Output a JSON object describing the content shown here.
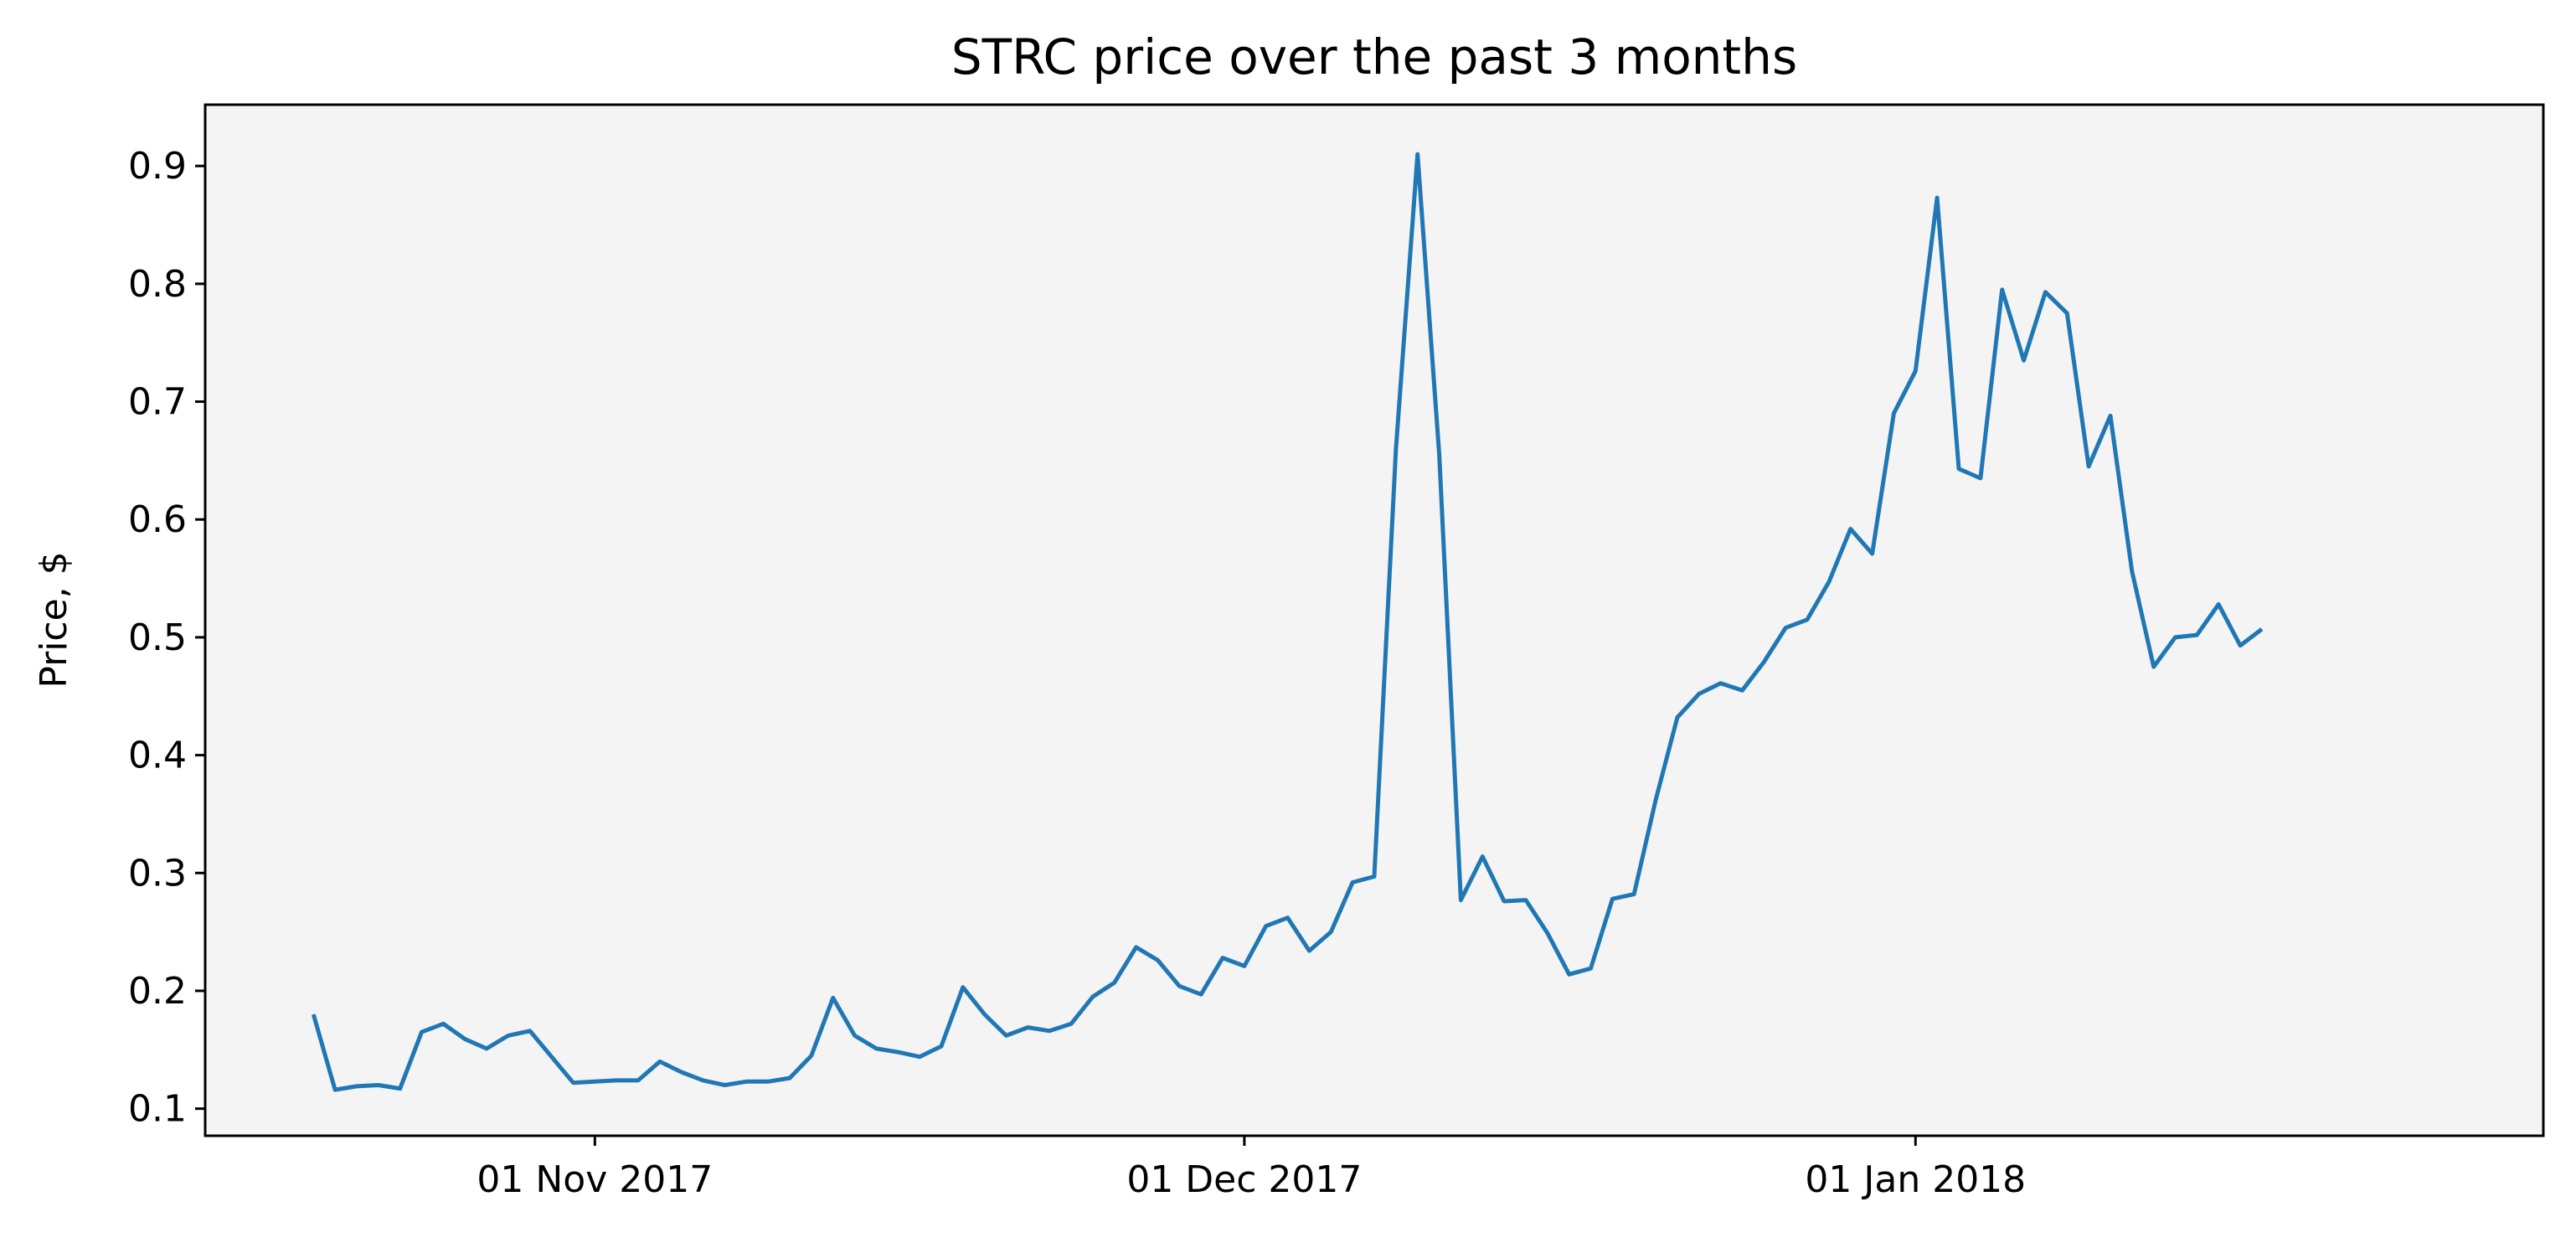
{
  "chart_data": {
    "type": "line",
    "title": "STRC price over the past 3 months",
    "xlabel": "",
    "ylabel": "Price, $",
    "x_start": "2017-10-19",
    "x_step_days": 1,
    "x_ticks": [
      {
        "date": "2017-11-01",
        "label": "01 Nov 2017"
      },
      {
        "date": "2017-12-01",
        "label": "01 Dec 2017"
      },
      {
        "date": "2018-01-01",
        "label": "01 Jan 2018"
      }
    ],
    "xlim": [
      "2017-10-14",
      "2018-01-30"
    ],
    "ylim": [
      0.077,
      0.952
    ],
    "y_ticks": [
      0.1,
      0.2,
      0.3,
      0.4,
      0.5,
      0.6,
      0.7,
      0.8,
      0.9
    ],
    "y_tick_labels": [
      "0.1",
      "0.2",
      "0.3",
      "0.4",
      "0.5",
      "0.6",
      "0.7",
      "0.8",
      "0.9"
    ],
    "grid": false,
    "background": "#f4f4f4",
    "line_color": "#1f77b4",
    "series": [
      {
        "values": [
          0.18,
          0.116,
          0.119,
          0.12,
          0.117,
          0.165,
          0.172,
          0.159,
          0.151,
          0.162,
          0.166,
          0.144,
          0.122,
          0.123,
          0.124,
          0.124,
          0.14,
          0.131,
          0.124,
          0.12,
          0.123,
          0.123,
          0.126,
          0.145,
          0.194,
          0.162,
          0.151,
          0.148,
          0.144,
          0.153,
          0.203,
          0.18,
          0.162,
          0.169,
          0.166,
          0.172,
          0.195,
          0.207,
          0.237,
          0.226,
          0.204,
          0.197,
          0.228,
          0.221,
          0.255,
          0.262,
          0.234,
          0.25,
          0.292,
          0.297,
          0.66,
          0.91,
          0.655,
          0.277,
          0.314,
          0.276,
          0.277,
          0.249,
          0.214,
          0.219,
          0.278,
          0.282,
          0.362,
          0.432,
          0.452,
          0.461,
          0.455,
          0.479,
          0.508,
          0.515,
          0.547,
          0.592,
          0.571,
          0.69,
          0.726,
          0.873,
          0.643,
          0.635,
          0.795,
          0.735,
          0.793,
          0.775,
          0.645,
          0.688,
          0.556,
          0.475,
          0.5,
          0.502,
          0.528,
          0.493,
          0.507
        ]
      }
    ]
  }
}
